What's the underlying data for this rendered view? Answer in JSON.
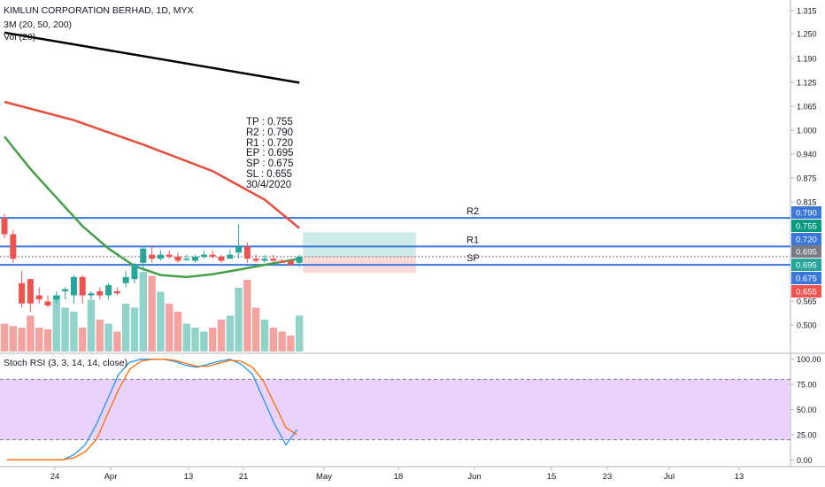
{
  "legend": {
    "symbol_line": "KIMLUN CORPORATION BERHAD, 1D, MYX",
    "ma_line": "3M (20, 50, 200)",
    "vol_line": "Vol (20)",
    "stoch_line": "Stoch RSI (3, 3, 14, 14, close)"
  },
  "notes": [
    "TP : 0.755",
    "R2 : 0.790",
    "R1 : 0.720",
    "EP : 0.695",
    "SP : 0.675",
    "SL : 0.655",
    "30/4/2020"
  ],
  "colors": {
    "up": "#26a69a",
    "down": "#ef5350",
    "vol_up": "#8fd3cb",
    "vol_down": "#f4a3a0",
    "ma_black": "#000000",
    "ma_red": "#e74c3c",
    "ma_green": "#43a047",
    "level_line": "#3c78d8",
    "stoch_k": "#2196f3",
    "stoch_d": "#ff6d00",
    "stoch_band": "#e1c4fb"
  },
  "chart_data": [
    {
      "type": "candlestick",
      "title": "KIMLUN CORPORATION BERHAD, 1D, MYX",
      "x_tick_labels": [
        "24",
        "Apr",
        "13",
        "21",
        "May",
        "18",
        "Jun",
        "15",
        "23",
        "Jul",
        "13"
      ],
      "y_ticks": [
        "1.315",
        "1.250",
        "1.190",
        "1.125",
        "1.065",
        "1.000",
        "0.940",
        "0.875",
        "0.815",
        "0.565",
        "0.500"
      ],
      "ylim": [
        0.46,
        1.325
      ],
      "candles": [
        {
          "o": 0.79,
          "h": 0.8,
          "l": 0.74,
          "c": 0.75
        },
        {
          "o": 0.75,
          "h": 0.76,
          "l": 0.68,
          "c": 0.69
        },
        {
          "o": 0.63,
          "h": 0.66,
          "l": 0.57,
          "c": 0.58
        },
        {
          "o": 0.64,
          "h": 0.64,
          "l": 0.56,
          "c": 0.58
        },
        {
          "o": 0.6,
          "h": 0.62,
          "l": 0.58,
          "c": 0.59
        },
        {
          "o": 0.585,
          "h": 0.6,
          "l": 0.57,
          "c": 0.575
        },
        {
          "o": 0.59,
          "h": 0.61,
          "l": 0.58,
          "c": 0.6
        },
        {
          "o": 0.61,
          "h": 0.62,
          "l": 0.59,
          "c": 0.615
        },
        {
          "o": 0.6,
          "h": 0.65,
          "l": 0.58,
          "c": 0.645
        },
        {
          "o": 0.645,
          "h": 0.65,
          "l": 0.58,
          "c": 0.6
        },
        {
          "o": 0.6,
          "h": 0.61,
          "l": 0.59,
          "c": 0.605
        },
        {
          "o": 0.61,
          "h": 0.62,
          "l": 0.59,
          "c": 0.6
        },
        {
          "o": 0.6,
          "h": 0.63,
          "l": 0.59,
          "c": 0.625
        },
        {
          "o": 0.61,
          "h": 0.62,
          "l": 0.6,
          "c": 0.605
        },
        {
          "o": 0.63,
          "h": 0.66,
          "l": 0.62,
          "c": 0.645
        },
        {
          "o": 0.64,
          "h": 0.68,
          "l": 0.63,
          "c": 0.675
        },
        {
          "o": 0.68,
          "h": 0.72,
          "l": 0.66,
          "c": 0.715
        },
        {
          "o": 0.7,
          "h": 0.72,
          "l": 0.68,
          "c": 0.69
        },
        {
          "o": 0.69,
          "h": 0.71,
          "l": 0.685,
          "c": 0.7
        },
        {
          "o": 0.7,
          "h": 0.71,
          "l": 0.69,
          "c": 0.695
        },
        {
          "o": 0.695,
          "h": 0.705,
          "l": 0.68,
          "c": 0.685
        },
        {
          "o": 0.69,
          "h": 0.7,
          "l": 0.685,
          "c": 0.69
        },
        {
          "o": 0.685,
          "h": 0.7,
          "l": 0.68,
          "c": 0.695
        },
        {
          "o": 0.695,
          "h": 0.71,
          "l": 0.69,
          "c": 0.7
        },
        {
          "o": 0.7,
          "h": 0.71,
          "l": 0.69,
          "c": 0.695
        },
        {
          "o": 0.695,
          "h": 0.7,
          "l": 0.68,
          "c": 0.685
        },
        {
          "o": 0.69,
          "h": 0.71,
          "l": 0.69,
          "c": 0.7
        },
        {
          "o": 0.705,
          "h": 0.775,
          "l": 0.69,
          "c": 0.72
        },
        {
          "o": 0.72,
          "h": 0.73,
          "l": 0.68,
          "c": 0.69
        },
        {
          "o": 0.69,
          "h": 0.7,
          "l": 0.68,
          "c": 0.685
        },
        {
          "o": 0.685,
          "h": 0.7,
          "l": 0.68,
          "c": 0.69
        },
        {
          "o": 0.69,
          "h": 0.7,
          "l": 0.68,
          "c": 0.685
        },
        {
          "o": 0.685,
          "h": 0.69,
          "l": 0.68,
          "c": 0.68
        },
        {
          "o": 0.685,
          "h": 0.69,
          "l": 0.675,
          "c": 0.675
        },
        {
          "o": 0.68,
          "h": 0.7,
          "l": 0.67,
          "c": 0.695
        }
      ],
      "volume": [
        0.35,
        0.32,
        0.3,
        0.45,
        0.3,
        0.28,
        0.7,
        0.55,
        0.5,
        0.3,
        0.65,
        0.4,
        0.35,
        0.25,
        0.6,
        0.55,
        1.0,
        0.95,
        0.75,
        0.6,
        0.5,
        0.35,
        0.3,
        0.25,
        0.3,
        0.4,
        0.45,
        0.8,
        0.9,
        0.55,
        0.4,
        0.3,
        0.25,
        0.2,
        0.45
      ],
      "moving_averages": {
        "ma200": [
          [
            0,
            1.245
          ],
          [
            34,
            1.122
          ]
        ],
        "ma50": [
          [
            0,
            1.075
          ],
          [
            8,
            1.03
          ],
          [
            16,
            0.97
          ],
          [
            24,
            0.905
          ],
          [
            30,
            0.835
          ],
          [
            34,
            0.765
          ]
        ],
        "ma20": [
          [
            0,
            0.99
          ],
          [
            3,
            0.91
          ],
          [
            6,
            0.84
          ],
          [
            9,
            0.77
          ],
          [
            12,
            0.715
          ],
          [
            15,
            0.672
          ],
          [
            18,
            0.65
          ],
          [
            21,
            0.645
          ],
          [
            24,
            0.652
          ],
          [
            27,
            0.663
          ],
          [
            30,
            0.675
          ],
          [
            34,
            0.69
          ]
        ]
      },
      "levels": [
        {
          "label": "R2",
          "value": 0.79,
          "color": "#3c78d8"
        },
        {
          "label": "R1",
          "value": 0.72,
          "color": "#3c78d8"
        },
        {
          "label": "SP",
          "value": 0.675,
          "color": "#3c78d8"
        }
      ],
      "price_badges": [
        {
          "text": "0.790",
          "color": "#3c78d8"
        },
        {
          "text": "0.755",
          "color": "#089981"
        },
        {
          "text": "0.720",
          "color": "#3c78d8"
        },
        {
          "text": "0.695",
          "color": "#787b86"
        },
        {
          "text": "0.695",
          "color": "#26a69a"
        },
        {
          "text": "0.675",
          "color": "#3c78d8"
        },
        {
          "text": "0.655",
          "color": "#ef5350"
        }
      ],
      "position": {
        "entry": 0.695,
        "target": 0.755,
        "stop": 0.655
      }
    },
    {
      "type": "line",
      "title": "Stoch RSI (3, 3, 14, 14, close)",
      "y_ticks": [
        "100.00",
        "75.00",
        "50.00",
        "25.00",
        "0.00"
      ],
      "ylim": [
        -5,
        105
      ],
      "band": [
        20,
        80
      ],
      "series": [
        {
          "values": [
            0,
            0,
            0,
            0,
            0,
            0,
            5,
            15,
            35,
            60,
            85,
            97,
            100,
            100,
            100,
            98,
            94,
            92,
            95,
            98,
            100,
            95,
            85,
            60,
            35,
            15,
            30
          ]
        },
        {
          "values": [
            0,
            0,
            0,
            0,
            0,
            0,
            2,
            8,
            20,
            45,
            70,
            90,
            98,
            100,
            100,
            99,
            96,
            93,
            93,
            96,
            99,
            98,
            92,
            78,
            55,
            32,
            25
          ]
        }
      ]
    }
  ]
}
